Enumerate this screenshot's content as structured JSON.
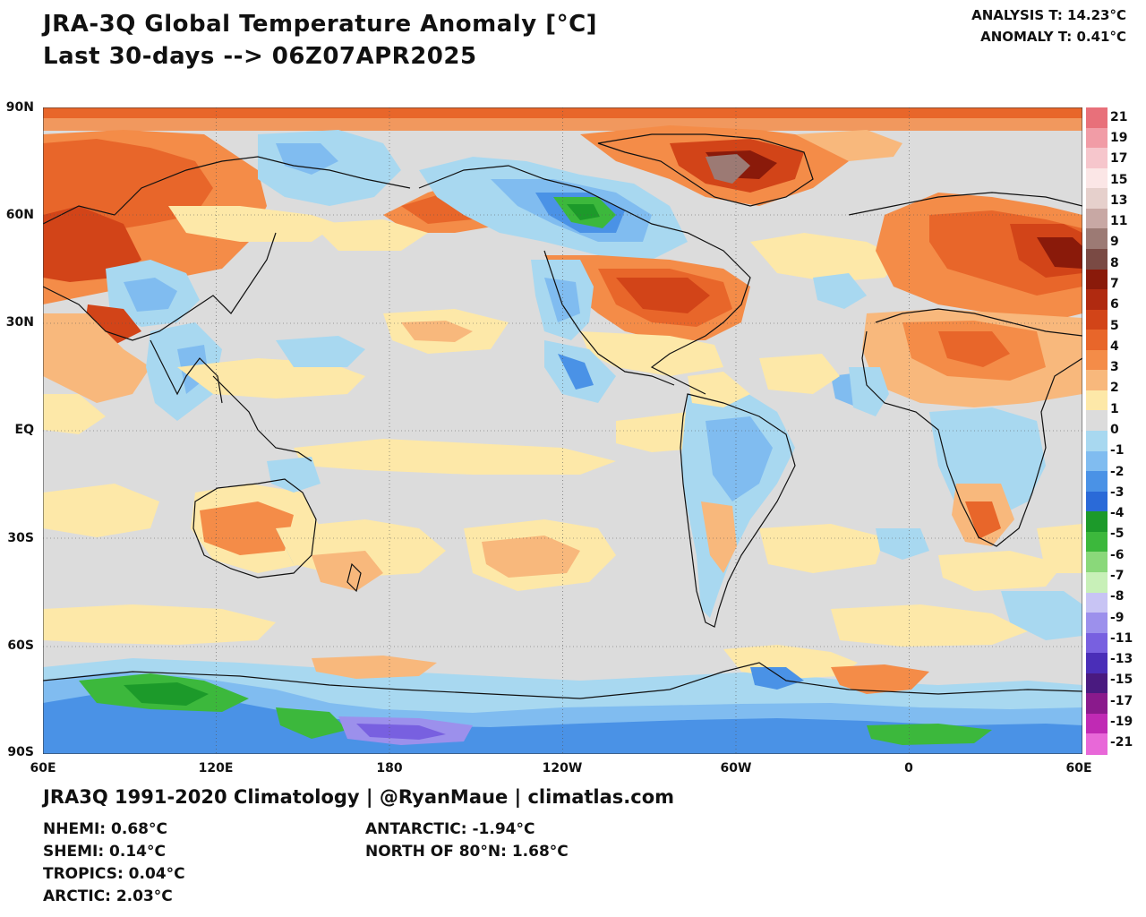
{
  "header": {
    "title_line1": "JRA-3Q Global Temperature Anomaly [°C]",
    "title_line2": "Last 30-days --> 06Z07APR2025",
    "analysis_t": "ANALYSIS T: 14.23°C",
    "anomaly_t": "ANOMALY T: 0.41°C"
  },
  "axes": {
    "lat_labels": [
      "90N",
      "60N",
      "30N",
      "EQ",
      "30S",
      "60S",
      "90S"
    ],
    "lon_labels": [
      "60E",
      "120E",
      "180",
      "120W",
      "60W",
      "0",
      "60E"
    ]
  },
  "legend": {
    "labels": [
      "21",
      "19",
      "17",
      "15",
      "13",
      "11",
      "9",
      "8",
      "7",
      "6",
      "5",
      "4",
      "3",
      "2",
      "1",
      "0",
      "-1",
      "-2",
      "-3",
      "-4",
      "-5",
      "-6",
      "-7",
      "-8",
      "-9",
      "-11",
      "-13",
      "-15",
      "-17",
      "-19",
      "-21"
    ],
    "colors": [
      "#e8707a",
      "#f19ca6",
      "#f6c6cc",
      "#fbe6e6",
      "#e6d0cc",
      "#c8a8a4",
      "#9c7a74",
      "#7a4a44",
      "#8a1a0a",
      "#b02a10",
      "#d24418",
      "#e8662a",
      "#f48c48",
      "#f8b87c",
      "#fde8a8",
      "#dcdcdc",
      "#a8d8f0",
      "#80bcf0",
      "#4a92e6",
      "#2a6ad8",
      "#1c9a2a",
      "#3cb83c",
      "#8ad87a",
      "#c8f0b8",
      "#c8c4f4",
      "#9c90ec",
      "#7860e0",
      "#4a2eb8",
      "#4a1a80",
      "#8a1a8c",
      "#c02ab4",
      "#e868d8"
    ]
  },
  "footer": {
    "credit": "JRA3Q 1991-2020 Climatology | @RyanMaue | climatlas.com",
    "nhemi": "NHEMI: 0.68°C",
    "shemi": "SHEMI: 0.14°C",
    "tropics": "TROPICS: 0.04°C",
    "arctic": "ARCTIC: 2.03°C",
    "antarctic": "ANTARCTIC: -1.94°C",
    "north80": "NORTH OF 80°N: 1.68°C"
  }
}
